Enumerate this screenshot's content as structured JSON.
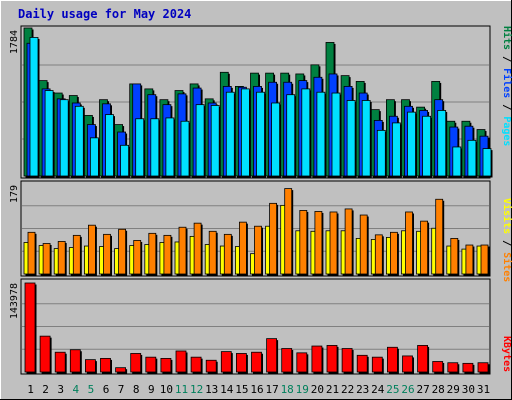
{
  "chart_data": [
    {
      "type": "bar",
      "title": "Daily usage for May 2024",
      "categories": [
        "1",
        "2",
        "3",
        "4",
        "5",
        "6",
        "7",
        "8",
        "9",
        "10",
        "11",
        "12",
        "13",
        "14",
        "15",
        "16",
        "17",
        "18",
        "19",
        "20",
        "21",
        "22",
        "23",
        "24",
        "25",
        "26",
        "27",
        "28",
        "29",
        "30",
        "31"
      ],
      "weekend_days": [
        "4",
        "5",
        "11",
        "12",
        "18",
        "19",
        "25",
        "26"
      ],
      "ylabel_max": "1784",
      "ylim": [
        0,
        1784
      ],
      "grid": true,
      "legend": "right-vertical",
      "series": [
        {
          "name": "Hits",
          "values": [
            1784,
            1150,
            1000,
            970,
            730,
            920,
            620,
            1110,
            1050,
            920,
            1030,
            1110,
            930,
            1250,
            1080,
            1240,
            1240,
            1240,
            1230,
            1340,
            1610,
            1210,
            1140,
            800,
            920,
            920,
            830,
            1140,
            660,
            660,
            560
          ]
        },
        {
          "name": "Files",
          "values": [
            1600,
            1050,
            930,
            880,
            620,
            870,
            530,
            1110,
            980,
            860,
            990,
            1060,
            880,
            1080,
            1070,
            1080,
            1130,
            1130,
            1150,
            1190,
            1230,
            1080,
            1000,
            670,
            720,
            840,
            790,
            920,
            590,
            600,
            480
          ]
        },
        {
          "name": "Pages",
          "values": [
            1670,
            1030,
            920,
            840,
            460,
            740,
            370,
            690,
            690,
            700,
            660,
            860,
            850,
            1010,
            1050,
            1010,
            880,
            980,
            1050,
            1010,
            1000,
            910,
            910,
            550,
            640,
            770,
            720,
            790,
            350,
            430,
            330
          ]
        }
      ]
    },
    {
      "type": "bar",
      "categories": [
        "1",
        "2",
        "3",
        "4",
        "5",
        "6",
        "7",
        "8",
        "9",
        "10",
        "11",
        "12",
        "13",
        "14",
        "15",
        "16",
        "17",
        "18",
        "19",
        "20",
        "21",
        "22",
        "23",
        "24",
        "25",
        "26",
        "27",
        "28",
        "29",
        "30",
        "31"
      ],
      "ylabel_max": "179",
      "ylim": [
        0,
        179
      ],
      "grid": true,
      "legend": "right-vertical",
      "series": [
        {
          "name": "Visits",
          "values": [
            62,
            56,
            50,
            52,
            55,
            54,
            50,
            56,
            58,
            62,
            63,
            74,
            58,
            55,
            54,
            40,
            94,
            135,
            85,
            84,
            85,
            85,
            70,
            68,
            72,
            85,
            84,
            90,
            55,
            49,
            55
          ]
        },
        {
          "name": "Sites",
          "values": [
            82,
            60,
            64,
            76,
            96,
            78,
            88,
            66,
            80,
            76,
            92,
            100,
            84,
            78,
            102,
            94,
            139,
            168,
            125,
            123,
            122,
            128,
            116,
            77,
            82,
            122,
            104,
            147,
            70,
            57,
            57
          ]
        }
      ]
    },
    {
      "type": "bar",
      "categories": [
        "1",
        "2",
        "3",
        "4",
        "5",
        "6",
        "7",
        "8",
        "9",
        "10",
        "11",
        "12",
        "13",
        "14",
        "15",
        "16",
        "17",
        "18",
        "19",
        "20",
        "21",
        "22",
        "23",
        "24",
        "25",
        "26",
        "27",
        "28",
        "29",
        "30",
        "31"
      ],
      "ylabel_max": "143978",
      "ylim": [
        0,
        143978
      ],
      "grid": true,
      "legend": "right-vertical",
      "series": [
        {
          "name": "KBytes",
          "values": [
            143978,
            58000,
            32000,
            36000,
            20000,
            22000,
            7000,
            30000,
            24000,
            22000,
            34000,
            24000,
            19000,
            33000,
            30000,
            32000,
            54000,
            38000,
            31000,
            42000,
            43000,
            38000,
            27000,
            24000,
            40000,
            26000,
            43000,
            17000,
            15000,
            14000,
            15000
          ]
        }
      ]
    }
  ],
  "colors": {
    "hits": "#008040",
    "files": "#0040ff",
    "pages": "#00e0ff",
    "visits": "#ffff00",
    "sites": "#ff8000",
    "kbytes": "#ff0000",
    "title": "#0000c0",
    "weekend": "#00805c",
    "background": "#c0c0c0",
    "grid": "#808080"
  }
}
